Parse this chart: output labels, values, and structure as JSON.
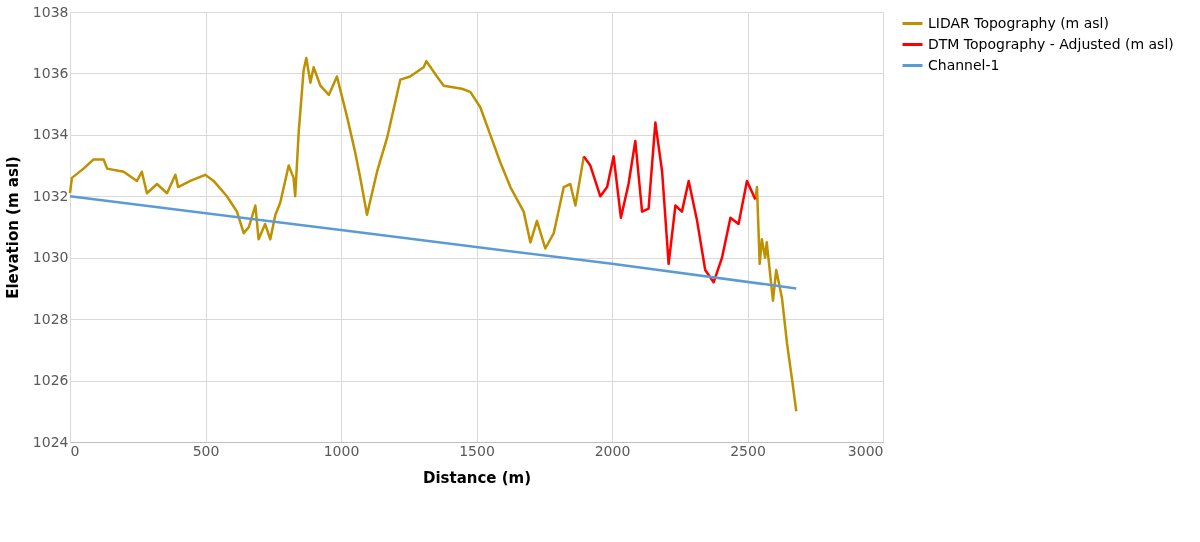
{
  "chart_data": {
    "type": "line",
    "xlabel": "Distance (m)",
    "ylabel": "Elevation (m asl)",
    "xlim": [
      0,
      3000
    ],
    "xticks": [
      0,
      500,
      1000,
      1500,
      2000,
      2500,
      3000
    ],
    "ylim": [
      1024,
      1038
    ],
    "yticks": [
      1024,
      1026,
      1028,
      1030,
      1032,
      1034,
      1036,
      1038
    ],
    "grid": true,
    "legend": "right",
    "marker": "none",
    "line_style": "solid",
    "series": [
      {
        "name": "LIDAR Topography  (m asl)",
        "color": "#bf9000",
        "x": [
          0,
          7,
          50,
          87,
          124,
          137,
          198,
          247,
          265,
          284,
          321,
          358,
          389,
          399,
          444,
          499,
          530,
          579,
          616,
          641,
          660,
          684,
          696,
          720,
          739,
          758,
          776,
          807,
          825,
          831,
          844,
          862,
          872,
          887,
          899,
          924,
          955,
          985,
          1022,
          1053,
          1071,
          1096,
          1133,
          1170,
          1219,
          1255,
          1305,
          1315,
          1354,
          1379,
          1446,
          1477,
          1514,
          1551,
          1588,
          1625,
          1674,
          1699,
          1723,
          1754,
          1785,
          1822,
          1846,
          1865,
          1896,
          null,
          2529,
          2535,
          2545,
          2553,
          2565,
          2571,
          2594,
          2606,
          2627,
          2646,
          2665,
          2680
        ],
        "values": [
          1032.1,
          1032.6,
          1032.9,
          1033.2,
          1033.2,
          1032.9,
          1032.8,
          1032.5,
          1032.8,
          1032.1,
          1032.4,
          1032.1,
          1032.7,
          1032.3,
          1032.5,
          1032.7,
          1032.5,
          1032.0,
          1031.5,
          1030.8,
          1031.0,
          1031.7,
          1030.6,
          1031.1,
          1030.6,
          1031.4,
          1031.8,
          1033.0,
          1032.6,
          1032.0,
          1034.1,
          1036.1,
          1036.5,
          1035.7,
          1036.2,
          1035.6,
          1035.3,
          1035.9,
          1034.6,
          1033.4,
          1032.6,
          1031.4,
          1032.8,
          1033.9,
          1035.8,
          1035.9,
          1036.2,
          1036.4,
          1035.9,
          1035.6,
          1035.5,
          1035.4,
          1034.9,
          1034.0,
          1033.1,
          1032.3,
          1031.5,
          1030.5,
          1031.2,
          1030.3,
          1030.8,
          1032.3,
          1032.4,
          1031.7,
          1033.3,
          null,
          1031.9,
          1032.3,
          1029.8,
          1030.6,
          1030.0,
          1030.5,
          1028.6,
          1029.6,
          1028.7,
          1027.2,
          1026.0,
          1025.0
        ]
      },
      {
        "name": "DTM Topography - Adjusted (m asl)",
        "color": "#ff0000",
        "x": [
          1896,
          1920,
          1957,
          1982,
          2006,
          2033,
          2061,
          2086,
          2111,
          2135,
          2160,
          2185,
          2209,
          2234,
          2258,
          2283,
          2314,
          2344,
          2375,
          2406,
          2437,
          2467,
          2498,
          2529
        ],
        "values": [
          1033.3,
          1033.0,
          1032.0,
          1032.3,
          1033.3,
          1031.3,
          1032.4,
          1033.8,
          1031.5,
          1031.6,
          1034.4,
          1032.8,
          1029.8,
          1031.7,
          1031.5,
          1032.5,
          1031.2,
          1029.6,
          1029.2,
          1030.0,
          1031.3,
          1031.1,
          1032.5,
          1031.9
        ]
      },
      {
        "name": "Channel-1",
        "color": "#5b9bd5",
        "x": [
          0,
          1000,
          2000,
          2680
        ],
        "values": [
          1032.0,
          1030.9,
          1029.8,
          1029.0
        ]
      }
    ]
  }
}
